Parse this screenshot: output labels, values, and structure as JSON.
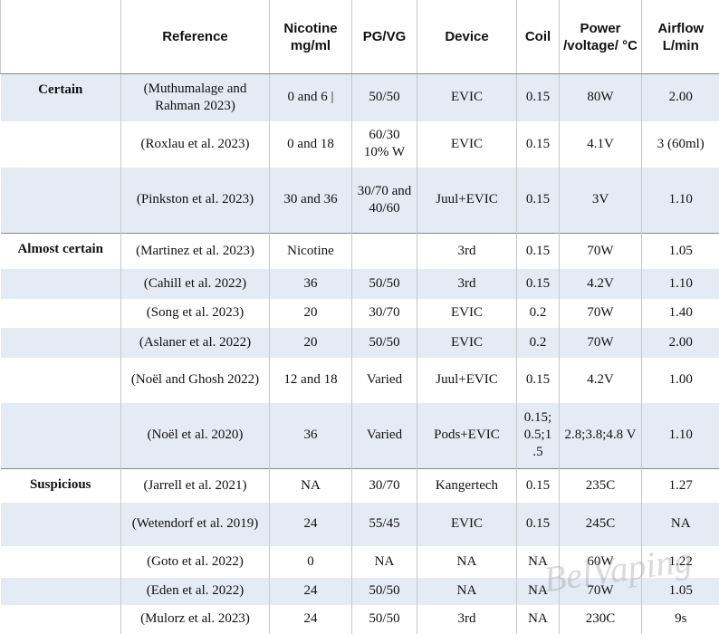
{
  "table": {
    "headers": [
      "Reference",
      "Nicotine mg/ml",
      "PG/VG",
      "Device",
      "Coil",
      "Power /voltage/ °C",
      "Airflow L/min"
    ],
    "groups": [
      {
        "label": "Certain",
        "rows": [
          [
            "(Muthumalage and Rahman 2023)",
            "0 and 6 |",
            "50/50",
            "EVIC",
            "0.15",
            "80W",
            "2.00"
          ],
          [
            "(Roxlau et al. 2023)",
            "0 and 18",
            "60/30 10% W",
            "EVIC",
            "0.15",
            "4.1V",
            "3 (60ml)"
          ],
          [
            "(Pinkston et al. 2023)",
            "30 and 36",
            "30/70 and 40/60",
            "Juul+EVIC",
            "0.15",
            "3V",
            "1.10"
          ]
        ]
      },
      {
        "label": "Almost certain",
        "rows": [
          [
            "(Martinez et al. 2023)",
            "Nicotine",
            null,
            "3rd",
            "0.15",
            "70W",
            "1.05"
          ],
          [
            "(Cahill et al. 2022)",
            "36",
            "50/50",
            "3rd",
            "0.15",
            "4.2V",
            "1.10"
          ],
          [
            "(Song et al. 2023)",
            "20",
            "30/70",
            "EVIC",
            "0.2",
            "70W",
            "1.40"
          ],
          [
            "(Aslaner et al. 2022)",
            "20",
            "50/50",
            "EVIC",
            "0.2",
            "70W",
            "2.00"
          ],
          [
            "(Noël and Ghosh 2022)",
            "12 and 18",
            "Varied",
            "Juul+EVIC",
            "0.15",
            "4.2V",
            "1.00"
          ],
          [
            "(Noël et al. 2020)",
            "36",
            "Varied",
            "Pods+EVIC",
            "0.15; 0.5;1 .5",
            "2.8;3.8;4.8 V",
            "1.10"
          ]
        ]
      },
      {
        "label": "Suspicious",
        "rows": [
          [
            "(Jarrell et al. 2021)",
            "NA",
            "30/70",
            "Kangertech",
            "0.15",
            "235C",
            "1.27"
          ],
          [
            "(Wetendorf et al. 2019)",
            "24",
            "55/45",
            "EVIC",
            "0.15",
            "245C",
            "NA"
          ],
          [
            "(Goto et al. 2022)",
            "0",
            "NA",
            "NA",
            "NA",
            "60W",
            "1.22"
          ],
          [
            "(Eden et al. 2022)",
            "24",
            "50/50",
            "NA",
            "NA",
            "70W",
            "1.05"
          ],
          [
            "(Mulorz et al. 2023)",
            "24",
            "50/50",
            "3rd",
            "NA",
            "230C",
            "9s"
          ]
        ]
      }
    ],
    "watermark": "BelVaping"
  }
}
